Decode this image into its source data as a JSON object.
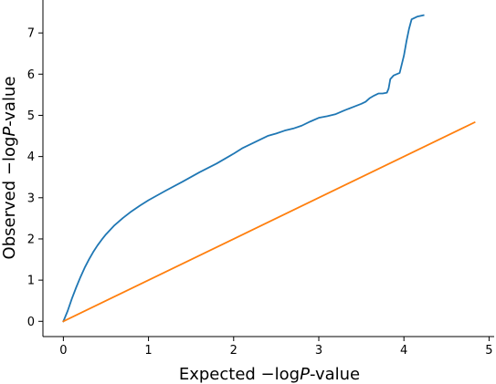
{
  "chart_data": {
    "type": "line",
    "xlabel": {
      "prefix": "Expected −log",
      "italic": "P",
      "suffix": "-value"
    },
    "ylabel": {
      "prefix": "Observed −log",
      "italic": "P",
      "suffix": "-value"
    },
    "xlim": [
      -0.24,
      5.06
    ],
    "ylim": [
      -0.37,
      7.8
    ],
    "x_ticks": [
      0,
      1,
      2,
      3,
      4,
      5
    ],
    "y_ticks": [
      0,
      1,
      2,
      3,
      4,
      5,
      6,
      7
    ],
    "grid": false,
    "spines": [
      "left",
      "bottom"
    ],
    "series": [
      {
        "color": "#1f77b4",
        "points": [
          [
            0.0,
            0.0
          ],
          [
            0.05,
            0.25
          ],
          [
            0.1,
            0.55
          ],
          [
            0.15,
            0.82
          ],
          [
            0.2,
            1.07
          ],
          [
            0.25,
            1.3
          ],
          [
            0.3,
            1.5
          ],
          [
            0.35,
            1.68
          ],
          [
            0.4,
            1.84
          ],
          [
            0.45,
            1.98
          ],
          [
            0.5,
            2.11
          ],
          [
            0.6,
            2.33
          ],
          [
            0.7,
            2.51
          ],
          [
            0.8,
            2.67
          ],
          [
            0.9,
            2.81
          ],
          [
            1.0,
            2.94
          ],
          [
            1.2,
            3.17
          ],
          [
            1.4,
            3.39
          ],
          [
            1.6,
            3.62
          ],
          [
            1.8,
            3.83
          ],
          [
            2.0,
            4.07
          ],
          [
            2.1,
            4.2
          ],
          [
            2.2,
            4.3
          ],
          [
            2.3,
            4.4
          ],
          [
            2.4,
            4.5
          ],
          [
            2.5,
            4.56
          ],
          [
            2.6,
            4.63
          ],
          [
            2.7,
            4.68
          ],
          [
            2.8,
            4.75
          ],
          [
            2.9,
            4.85
          ],
          [
            3.0,
            4.94
          ],
          [
            3.1,
            4.98
          ],
          [
            3.2,
            5.03
          ],
          [
            3.3,
            5.12
          ],
          [
            3.4,
            5.2
          ],
          [
            3.5,
            5.28
          ],
          [
            3.55,
            5.33
          ],
          [
            3.6,
            5.42
          ],
          [
            3.65,
            5.48
          ],
          [
            3.7,
            5.53
          ],
          [
            3.75,
            5.53
          ],
          [
            3.8,
            5.55
          ],
          [
            3.82,
            5.65
          ],
          [
            3.84,
            5.88
          ],
          [
            3.88,
            5.97
          ],
          [
            3.95,
            6.03
          ],
          [
            4.0,
            6.45
          ],
          [
            4.03,
            6.8
          ],
          [
            4.06,
            7.1
          ],
          [
            4.09,
            7.33
          ],
          [
            4.16,
            7.4
          ],
          [
            4.23,
            7.43
          ]
        ]
      },
      {
        "color": "#ff7f0e",
        "points": [
          [
            0.0,
            0.0
          ],
          [
            4.83,
            4.83
          ]
        ]
      }
    ]
  }
}
